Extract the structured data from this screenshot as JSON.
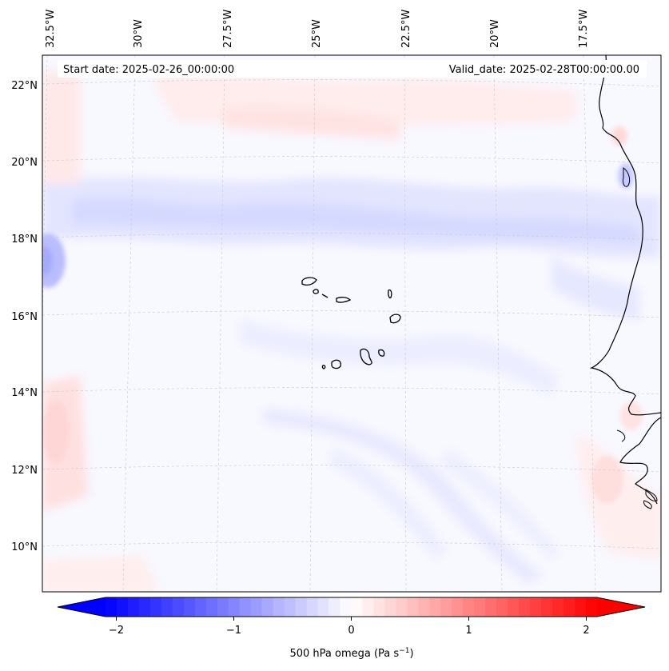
{
  "map": {
    "start_date_text": "Start date: 2025-02-26_00:00:00",
    "valid_date_text": "Valid_date: 2025-02-28T00:00:00.00",
    "lon_labels": [
      "32.5°W",
      "30°W",
      "27.5°W",
      "25°W",
      "22.5°W",
      "20°W",
      "17.5°W"
    ],
    "lat_labels": [
      "22°N",
      "20°N",
      "18°N",
      "16°N",
      "14°N",
      "12°N",
      "10°N"
    ],
    "field": "500 hPa omega",
    "features": [
      "Cape Verde islands",
      "West African coastline"
    ]
  },
  "colorbar": {
    "label": "500 hPa omega (Pa s",
    "label_exp": "−1",
    "label_close": ")",
    "ticks": [
      "−2",
      "−1",
      "0",
      "1",
      "2"
    ],
    "tick_values": [
      -2,
      -1,
      0,
      1,
      2
    ],
    "vmin": -2.5,
    "vmax": 2.5,
    "extend": "both",
    "colormap": "bwr",
    "low_color": "#0000ff",
    "mid_color": "#ffffff",
    "high_color": "#ff0000"
  }
}
